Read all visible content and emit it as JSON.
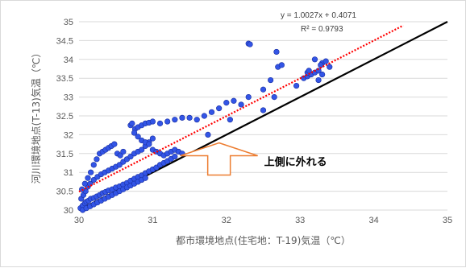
{
  "chart_data": {
    "type": "scatter",
    "title": "",
    "xlabel": "都市環境地点(住宅地：T-19)気温（℃）",
    "ylabel": "河川環境地点(T-13)気温（℃）",
    "xlim": [
      30,
      35
    ],
    "ylim": [
      30,
      35
    ],
    "x_ticks": [
      "30",
      "31",
      "32",
      "33",
      "34",
      "35"
    ],
    "y_ticks": [
      "30",
      "30.5",
      "31",
      "31.5",
      "32",
      "32.5",
      "33",
      "33.5",
      "34",
      "34.5",
      "35"
    ],
    "grid": "horizontal",
    "series": [
      {
        "marker_color": "#3355e6",
        "points": [
          [
            30.02,
            30.05
          ],
          [
            30.05,
            30.12
          ],
          [
            30.08,
            30.18
          ],
          [
            30.1,
            30.22
          ],
          [
            30.13,
            30.25
          ],
          [
            30.16,
            30.3
          ],
          [
            30.2,
            30.32
          ],
          [
            30.24,
            30.36
          ],
          [
            30.28,
            30.4
          ],
          [
            30.32,
            30.45
          ],
          [
            30.36,
            30.48
          ],
          [
            30.4,
            30.52
          ],
          [
            30.45,
            30.55
          ],
          [
            30.5,
            30.6
          ],
          [
            30.55,
            30.63
          ],
          [
            30.6,
            30.68
          ],
          [
            30.65,
            30.72
          ],
          [
            30.7,
            30.78
          ],
          [
            30.75,
            30.83
          ],
          [
            30.8,
            30.88
          ],
          [
            30.85,
            30.92
          ],
          [
            30.9,
            30.98
          ],
          [
            30.95,
            31.03
          ],
          [
            31.0,
            31.08
          ],
          [
            31.05,
            31.13
          ],
          [
            31.1,
            31.2
          ],
          [
            31.15,
            31.25
          ],
          [
            31.2,
            31.3
          ],
          [
            31.25,
            31.36
          ],
          [
            31.3,
            31.42
          ],
          [
            30.03,
            30.3
          ],
          [
            30.06,
            30.4
          ],
          [
            30.09,
            30.5
          ],
          [
            30.12,
            30.62
          ],
          [
            30.15,
            30.7
          ],
          [
            30.2,
            30.8
          ],
          [
            30.25,
            30.88
          ],
          [
            30.3,
            30.95
          ],
          [
            30.35,
            31.0
          ],
          [
            30.4,
            31.05
          ],
          [
            30.45,
            31.1
          ],
          [
            30.5,
            31.15
          ],
          [
            30.55,
            31.2
          ],
          [
            30.6,
            31.28
          ],
          [
            30.65,
            31.35
          ],
          [
            30.7,
            31.42
          ],
          [
            30.75,
            31.5
          ],
          [
            30.8,
            31.55
          ],
          [
            30.85,
            31.6
          ],
          [
            30.9,
            31.7
          ],
          [
            30.95,
            31.8
          ],
          [
            31.0,
            31.9
          ],
          [
            30.04,
            30.55
          ],
          [
            30.08,
            30.7
          ],
          [
            30.12,
            30.85
          ],
          [
            30.16,
            31.0
          ],
          [
            30.2,
            31.2
          ],
          [
            30.24,
            31.35
          ],
          [
            30.28,
            31.5
          ],
          [
            30.32,
            31.55
          ],
          [
            30.36,
            31.6
          ],
          [
            30.4,
            31.65
          ],
          [
            30.44,
            31.7
          ],
          [
            30.48,
            31.75
          ],
          [
            30.52,
            31.5
          ],
          [
            30.56,
            31.45
          ],
          [
            30.6,
            31.55
          ],
          [
            30.05,
            30.0
          ],
          [
            30.1,
            30.05
          ],
          [
            30.15,
            30.1
          ],
          [
            30.2,
            30.15
          ],
          [
            30.25,
            30.2
          ],
          [
            30.3,
            30.25
          ],
          [
            30.35,
            30.3
          ],
          [
            30.4,
            30.35
          ],
          [
            30.45,
            30.4
          ],
          [
            30.5,
            30.45
          ],
          [
            30.55,
            30.5
          ],
          [
            30.6,
            30.55
          ],
          [
            30.65,
            30.6
          ],
          [
            30.7,
            30.65
          ],
          [
            30.75,
            30.7
          ],
          [
            30.8,
            30.75
          ],
          [
            30.85,
            30.8
          ],
          [
            30.9,
            30.85
          ],
          [
            30.7,
            32.25
          ],
          [
            30.72,
            32.3
          ],
          [
            30.76,
            32.15
          ],
          [
            30.8,
            32.2
          ],
          [
            30.85,
            32.25
          ],
          [
            30.9,
            32.3
          ],
          [
            30.95,
            32.32
          ],
          [
            31.0,
            32.35
          ],
          [
            30.75,
            32.05
          ],
          [
            30.8,
            31.95
          ],
          [
            30.85,
            31.85
          ],
          [
            30.9,
            31.8
          ],
          [
            30.95,
            31.75
          ],
          [
            31.0,
            31.6
          ],
          [
            31.05,
            31.55
          ],
          [
            31.1,
            31.5
          ],
          [
            31.15,
            31.45
          ],
          [
            31.2,
            31.5
          ],
          [
            31.25,
            31.55
          ],
          [
            31.3,
            31.6
          ],
          [
            31.35,
            31.55
          ],
          [
            31.4,
            31.5
          ],
          [
            31.1,
            32.3
          ],
          [
            31.2,
            32.35
          ],
          [
            31.3,
            32.4
          ],
          [
            31.4,
            32.45
          ],
          [
            31.5,
            32.45
          ],
          [
            31.6,
            32.4
          ],
          [
            31.7,
            32.5
          ],
          [
            31.75,
            32.0
          ],
          [
            31.8,
            32.6
          ],
          [
            31.9,
            32.7
          ],
          [
            32.0,
            32.85
          ],
          [
            32.05,
            32.4
          ],
          [
            32.1,
            32.9
          ],
          [
            32.2,
            32.8
          ],
          [
            32.3,
            33.0
          ],
          [
            32.3,
            34.42
          ],
          [
            32.32,
            34.4
          ],
          [
            32.5,
            33.2
          ],
          [
            32.5,
            32.65
          ],
          [
            32.6,
            33.45
          ],
          [
            32.65,
            33.0
          ],
          [
            32.7,
            33.8
          ],
          [
            32.68,
            34.2
          ],
          [
            32.75,
            33.85
          ],
          [
            32.95,
            33.3
          ],
          [
            33.05,
            33.5
          ],
          [
            33.1,
            33.55
          ],
          [
            33.15,
            33.6
          ],
          [
            33.2,
            33.65
          ],
          [
            33.25,
            33.45
          ],
          [
            33.3,
            33.6
          ],
          [
            33.3,
            33.9
          ],
          [
            33.35,
            33.95
          ],
          [
            33.4,
            33.8
          ],
          [
            33.2,
            34.0
          ],
          [
            33.25,
            33.7
          ],
          [
            33.28,
            33.85
          ],
          [
            33.1,
            33.65
          ],
          [
            33.12,
            33.7
          ]
        ]
      }
    ],
    "trendline": {
      "equation": "y = 1.0027x + 0.4071",
      "r2": "R² = 0.9793",
      "slope": 1.0027,
      "intercept": 0.4071,
      "x_range": [
        30,
        34.4
      ],
      "color": "#ff0000"
    },
    "reference_line": {
      "x_range": [
        30,
        35
      ],
      "color": "#000000"
    },
    "callout": {
      "text": "上側に外れる",
      "arrow_color": "#ed7d31",
      "data_x": 31.9,
      "data_y": 31.1
    }
  }
}
